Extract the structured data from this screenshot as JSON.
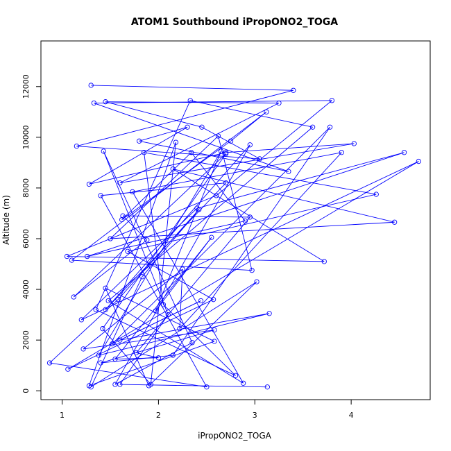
{
  "chart_data": {
    "type": "line",
    "title": "ATOM1 Southbound iPropONO2_TOGA",
    "xlabel": "iPropONO2_TOGA",
    "ylabel": "Altitude (m)",
    "xlim": [
      0.78,
      4.82
    ],
    "ylim": [
      -350,
      13800
    ],
    "x_ticks": [
      1,
      2,
      3,
      4
    ],
    "y_ticks": [
      0,
      2000,
      4000,
      6000,
      8000,
      10000,
      12000
    ],
    "x_tick_labels": [
      "1",
      "2",
      "3",
      "4"
    ],
    "y_tick_labels": [
      "0",
      "2000",
      "4000",
      "6000",
      "8000",
      "10000",
      "12000"
    ],
    "grid": false,
    "series": [
      {
        "color": "#0000ff",
        "marker": "open-circle",
        "x": [
          1.3,
          3.4,
          1.15,
          3.05,
          2.45,
          1.45,
          3.25,
          1.6,
          4.03,
          2.7,
          1.28,
          2.3,
          1.8,
          3.35,
          1.33,
          3.8,
          2.6,
          1.05,
          3.72,
          2.15,
          4.45,
          1.5,
          2.62,
          2.97,
          1.1,
          3.12,
          2.75,
          1.62,
          2.34,
          2.9,
          1.26,
          4.55,
          2.4,
          1.2,
          4.7,
          1.06,
          2.57,
          1.68,
          4.26,
          1.85,
          2.05,
          2.8,
          1.35,
          2.33,
          3.6,
          1.48,
          2.88,
          1.73,
          3.9,
          2.22,
          2.25,
          1.22,
          2.58,
          1.4,
          2.15,
          3.78,
          1.52,
          2.44,
          1.6,
          3.15,
          1.38,
          2.65,
          1.97,
          2.55,
          1.55,
          2.0,
          1.77,
          2.95,
          1.63,
          1.88,
          1.12,
          2.7,
          1.42,
          1.92,
          2.18,
          1.28,
          2.58,
          1.45,
          1.9,
          3.02,
          1.3,
          1.83,
          2.42,
          1.58,
          0.87,
          2.5,
          1.4,
          2.7,
          1.45,
          2.95,
          1.55,
          2.35,
          1.43,
          2.1,
          1.6,
          3.13
        ],
        "y": [
          12050,
          11850,
          9650,
          9150,
          10400,
          11400,
          11350,
          8200,
          9750,
          9400,
          8150,
          10400,
          9850,
          8650,
          11350,
          11450,
          7700,
          5300,
          5100,
          8750,
          6650,
          6000,
          10050,
          4750,
          5150,
          11000,
          9850,
          6750,
          9400,
          6700,
          5300,
          9400,
          7200,
          2800,
          9050,
          850,
          3600,
          5500,
          7750,
          9400,
          3400,
          600,
          3200,
          11450,
          10400,
          3550,
          300,
          7850,
          9400,
          2450,
          4800,
          1650,
          2400,
          1100,
          1400,
          10400,
          1850,
          3550,
          2000,
          3050,
          1400,
          9450,
          3150,
          6050,
          1250,
          1300,
          1500,
          6850,
          6900,
          5950,
          3700,
          9350,
          2450,
          250,
          9800,
          200,
          1950,
          4050,
          200,
          4300,
          150,
          4500,
          7150,
          3600,
          1100,
          150,
          7700,
          8200,
          3200,
          9700,
          250,
          1900,
          9450,
          3000,
          250,
          150
        ]
      }
    ]
  }
}
